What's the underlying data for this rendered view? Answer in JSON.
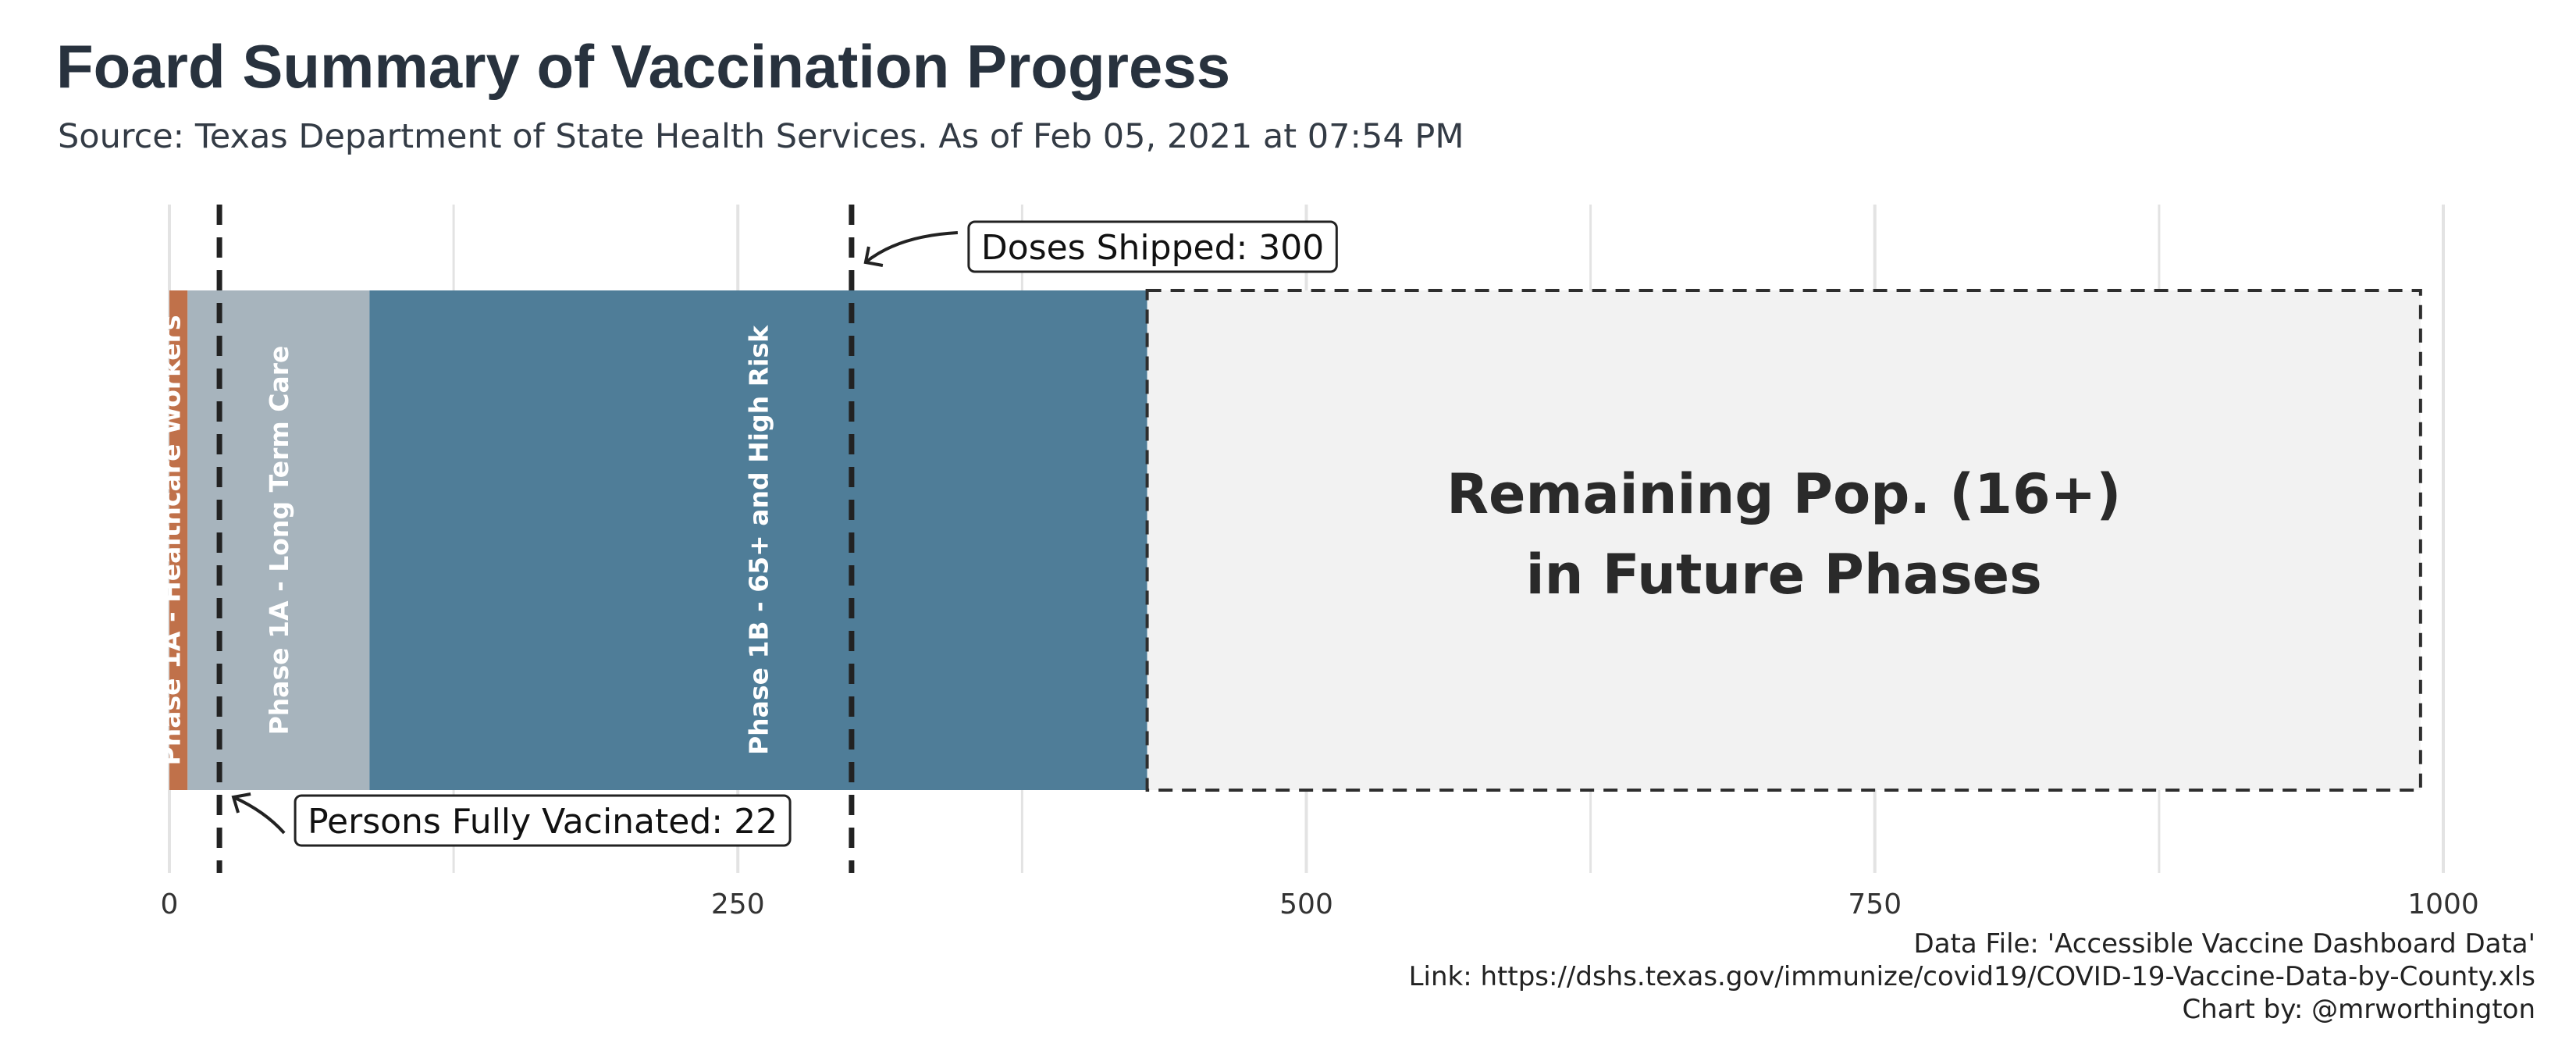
{
  "title": "Foard Summary of Vaccination Progress",
  "subtitle": "Source: Texas Department of State Health Services. As of Feb 05, 2021 at 07:54 PM",
  "caption": {
    "line1": "Data File: 'Accessible Vaccine Dashboard Data'",
    "line2": "Link: https://dshs.texas.gov/immunize/covid19/COVID-19-Vaccine-Data-by-County.xls",
    "line3": "Chart by: @mrworthington"
  },
  "chart_data": {
    "type": "bar",
    "orientation": "horizontal-stacked",
    "xlim": [
      0,
      1000
    ],
    "x_ticks": [
      0,
      250,
      500,
      750,
      1000
    ],
    "grid": true,
    "segments": [
      {
        "label": "Phase 1A - Healthcare Workers",
        "start": 0,
        "end": 8,
        "color": "#c0714a"
      },
      {
        "label": "Phase 1A - Long Term Care",
        "start": 8,
        "end": 88,
        "color": "#a7b4bd"
      },
      {
        "label": "Phase 1B - 65+ and High Risk",
        "start": 88,
        "end": 430,
        "color": "#4f7d98"
      },
      {
        "label_line1": "Remaining Pop. (16+)",
        "label_line2": "in Future Phases",
        "start": 430,
        "end": 990,
        "color": "#f2f2f2",
        "dashed": true
      }
    ],
    "reference_lines": [
      {
        "name": "persons_fully_vaccinated",
        "value": 22,
        "label": "Persons Fully Vacinated: 22"
      },
      {
        "name": "doses_shipped",
        "value": 300,
        "label": "Doses Shipped: 300"
      }
    ]
  }
}
